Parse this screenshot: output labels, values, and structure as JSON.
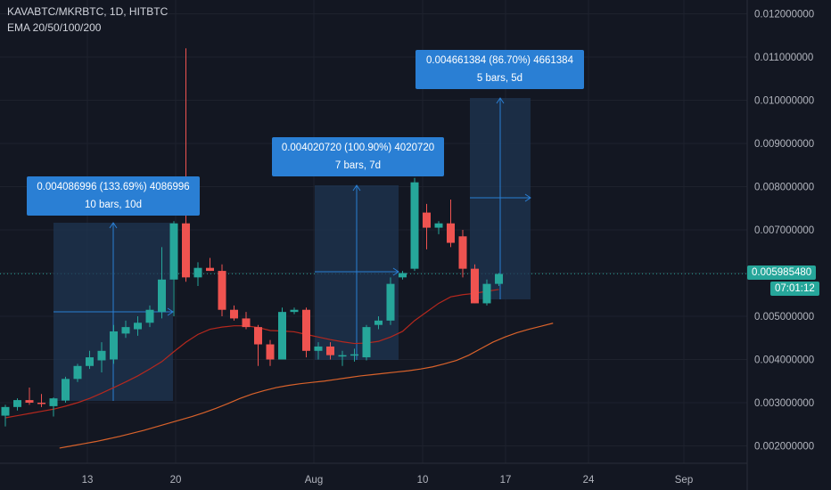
{
  "header": {
    "symbol_line": "KAVABTC/MKRBTC, 1D, HITBTC",
    "indicator_line": "EMA 20/50/100/200"
  },
  "last_price": {
    "value": "0.005985480",
    "countdown": "07:01:12"
  },
  "colors": {
    "up": "#26a69a",
    "down": "#ef5350",
    "ema_fast": "#b5281e",
    "ema_slow": "#d9622b",
    "measure_fill": "#1f3552",
    "measure_line": "#2a7fd4",
    "background": "#131722"
  },
  "measurements": [
    {
      "line1": "0.004086996 (133.69%) 4086996",
      "line2": "10 bars, 10d"
    },
    {
      "line1": "0.004020720 (100.90%) 4020720",
      "line2": "7 bars, 7d"
    },
    {
      "line1": "0.004661384 (86.70%) 4661384",
      "line2": "5 bars, 5d"
    }
  ],
  "chart_data": {
    "type": "candlestick",
    "title": "KAVABTC/MKRBTC, 1D, HITBTC",
    "y_axis": {
      "ylim": [
        0.0015,
        0.0125
      ],
      "tick_labels": [
        "0.002000000",
        "0.003000000",
        "0.004000000",
        "0.005000000",
        "0.006000000",
        "0.007000000",
        "0.008000000",
        "0.009000000",
        "0.010000000",
        "0.011000000",
        "0.012000000"
      ]
    },
    "x_axis": {
      "tick_labels": [
        "13",
        "20",
        "Aug",
        "10",
        "17",
        "24",
        "Sep"
      ]
    },
    "candles": [
      {
        "o": 0.0027,
        "h": 0.00295,
        "l": 0.00245,
        "c": 0.0029
      },
      {
        "o": 0.0029,
        "h": 0.0031,
        "l": 0.00282,
        "c": 0.00306
      },
      {
        "o": 0.00306,
        "h": 0.00335,
        "l": 0.00295,
        "c": 0.003
      },
      {
        "o": 0.003,
        "h": 0.0032,
        "l": 0.0029,
        "c": 0.00298
      },
      {
        "o": 0.00292,
        "h": 0.00312,
        "l": 0.00268,
        "c": 0.0031
      },
      {
        "o": 0.00305,
        "h": 0.0036,
        "l": 0.003,
        "c": 0.00355
      },
      {
        "o": 0.00355,
        "h": 0.0039,
        "l": 0.00348,
        "c": 0.00385
      },
      {
        "o": 0.00385,
        "h": 0.0042,
        "l": 0.00378,
        "c": 0.00405
      },
      {
        "o": 0.00398,
        "h": 0.0044,
        "l": 0.0037,
        "c": 0.0042
      },
      {
        "o": 0.004,
        "h": 0.0048,
        "l": 0.0039,
        "c": 0.00465
      },
      {
        "o": 0.0046,
        "h": 0.0049,
        "l": 0.0045,
        "c": 0.00475
      },
      {
        "o": 0.0047,
        "h": 0.005,
        "l": 0.00455,
        "c": 0.00485
      },
      {
        "o": 0.00485,
        "h": 0.00525,
        "l": 0.00475,
        "c": 0.00515
      },
      {
        "o": 0.0051,
        "h": 0.0066,
        "l": 0.00495,
        "c": 0.00585
      },
      {
        "o": 0.00585,
        "h": 0.0072,
        "l": 0.005,
        "c": 0.00715
      },
      {
        "o": 0.00715,
        "h": 0.0112,
        "l": 0.0058,
        "c": 0.0059
      },
      {
        "o": 0.0059,
        "h": 0.00625,
        "l": 0.0057,
        "c": 0.00612
      },
      {
        "o": 0.00612,
        "h": 0.00635,
        "l": 0.00605,
        "c": 0.00605
      },
      {
        "o": 0.00605,
        "h": 0.0062,
        "l": 0.005,
        "c": 0.00515
      },
      {
        "o": 0.00515,
        "h": 0.00525,
        "l": 0.0049,
        "c": 0.00495
      },
      {
        "o": 0.00495,
        "h": 0.0051,
        "l": 0.0047,
        "c": 0.00475
      },
      {
        "o": 0.00475,
        "h": 0.0048,
        "l": 0.00385,
        "c": 0.00435
      },
      {
        "o": 0.00435,
        "h": 0.00445,
        "l": 0.00385,
        "c": 0.004
      },
      {
        "o": 0.004,
        "h": 0.0052,
        "l": 0.004,
        "c": 0.0051
      },
      {
        "o": 0.0051,
        "h": 0.0052,
        "l": 0.00505,
        "c": 0.00515
      },
      {
        "o": 0.00515,
        "h": 0.0052,
        "l": 0.00405,
        "c": 0.0042
      },
      {
        "o": 0.0042,
        "h": 0.0044,
        "l": 0.004,
        "c": 0.0043
      },
      {
        "o": 0.0043,
        "h": 0.0044,
        "l": 0.004,
        "c": 0.0041
      },
      {
        "o": 0.0041,
        "h": 0.0042,
        "l": 0.00385,
        "c": 0.0041
      },
      {
        "o": 0.0041,
        "h": 0.00425,
        "l": 0.00395,
        "c": 0.00412
      },
      {
        "o": 0.00405,
        "h": 0.0048,
        "l": 0.00398,
        "c": 0.00475
      },
      {
        "o": 0.0048,
        "h": 0.005,
        "l": 0.0047,
        "c": 0.0049
      },
      {
        "o": 0.0049,
        "h": 0.0059,
        "l": 0.0048,
        "c": 0.00575
      },
      {
        "o": 0.0059,
        "h": 0.00605,
        "l": 0.00585,
        "c": 0.006
      },
      {
        "o": 0.0061,
        "h": 0.0082,
        "l": 0.00605,
        "c": 0.0081
      },
      {
        "o": 0.0074,
        "h": 0.0076,
        "l": 0.00655,
        "c": 0.00705
      },
      {
        "o": 0.00705,
        "h": 0.0072,
        "l": 0.0069,
        "c": 0.00715
      },
      {
        "o": 0.00715,
        "h": 0.0077,
        "l": 0.0066,
        "c": 0.0067
      },
      {
        "o": 0.00685,
        "h": 0.007,
        "l": 0.0059,
        "c": 0.0061
      },
      {
        "o": 0.0061,
        "h": 0.0062,
        "l": 0.0053,
        "c": 0.0053
      },
      {
        "o": 0.0053,
        "h": 0.00585,
        "l": 0.00525,
        "c": 0.00575
      },
      {
        "o": 0.00575,
        "h": 0.006,
        "l": 0.0057,
        "c": 0.00598
      }
    ],
    "ema_fast": [
      0.00265,
      0.0027,
      0.00275,
      0.0028,
      0.00285,
      0.00292,
      0.003,
      0.0031,
      0.00322,
      0.00335,
      0.00348,
      0.00362,
      0.00378,
      0.00395,
      0.00418,
      0.0044,
      0.00458,
      0.0047,
      0.00475,
      0.00478,
      0.00478,
      0.00474,
      0.00467,
      0.00466,
      0.00464,
      0.00458,
      0.00452,
      0.00446,
      0.00441,
      0.00437,
      0.00438,
      0.00442,
      0.00452,
      0.00465,
      0.0049,
      0.0051,
      0.0053,
      0.00545,
      0.0055,
      0.00553,
      0.00558,
      0.00562
    ],
    "ema_slow": [
      0.00195,
      0.002,
      0.00205,
      0.0021,
      0.00216,
      0.00222,
      0.00229,
      0.00236,
      0.00244,
      0.00252,
      0.0026,
      0.00268,
      0.00277,
      0.00287,
      0.00298,
      0.0031,
      0.0032,
      0.00328,
      0.00335,
      0.0034,
      0.00344,
      0.00347,
      0.0035,
      0.00354,
      0.00358,
      0.00362,
      0.00365,
      0.00368,
      0.00371,
      0.00374,
      0.00378,
      0.00383,
      0.0039,
      0.00398,
      0.0041,
      0.00425,
      0.0044,
      0.00452,
      0.00462,
      0.0047,
      0.00477,
      0.00484
    ],
    "ema_slow_first_bar": 5
  }
}
